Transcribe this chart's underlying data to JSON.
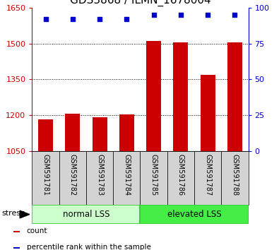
{
  "title": "GDS3868 / ILMN_1678004",
  "samples": [
    "GSM591781",
    "GSM591782",
    "GSM591783",
    "GSM591784",
    "GSM591785",
    "GSM591786",
    "GSM591787",
    "GSM591788"
  ],
  "counts": [
    1183,
    1208,
    1193,
    1205,
    1510,
    1503,
    1370,
    1503
  ],
  "percentile_ranks": [
    92,
    92,
    92,
    92,
    95,
    95,
    95,
    95
  ],
  "ylim_left": [
    1050,
    1650
  ],
  "ylim_right": [
    0,
    100
  ],
  "yticks_left": [
    1050,
    1200,
    1350,
    1500,
    1650
  ],
  "yticks_right": [
    0,
    25,
    50,
    75,
    100
  ],
  "bar_color": "#cc0000",
  "dot_color": "#0000cc",
  "groups": [
    {
      "label": "normal LSS",
      "start": 0,
      "end": 3,
      "bg_color": "#ccffcc",
      "border_color": "#33cc33"
    },
    {
      "label": "elevated LSS",
      "start": 4,
      "end": 7,
      "bg_color": "#44ee44",
      "border_color": "#33cc33"
    }
  ],
  "stress_label": "stress",
  "legend_items": [
    {
      "color": "#cc0000",
      "label": "count"
    },
    {
      "color": "#0000cc",
      "label": "percentile rank within the sample"
    }
  ],
  "sample_bg_color": "#d3d3d3",
  "plot_bg_color": "#ffffff",
  "title_fontsize": 11,
  "axis_tick_color_left": "#cc0000",
  "axis_tick_color_right": "#0000cc",
  "bar_width": 0.55,
  "dot_size": 22
}
